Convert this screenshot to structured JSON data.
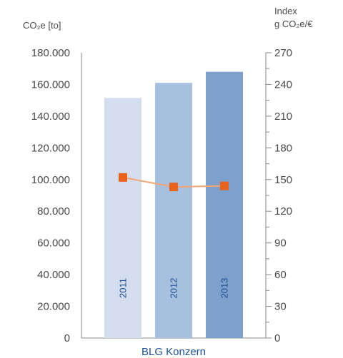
{
  "chart_data": {
    "type": "bar",
    "title": "",
    "categories": [
      "2011",
      "2012",
      "2013"
    ],
    "group_label": "BLG Konzern",
    "left_axis": {
      "label": "CO₂e [to]",
      "ticks": [
        "180.000",
        "160.000",
        "140.000",
        "120.000",
        "100.000",
        "80.000",
        "60.000",
        "40.000",
        "20.000",
        "0"
      ],
      "ylim": [
        0,
        180000
      ]
    },
    "right_axis": {
      "label_line1": "Index",
      "label_line2": "g CO₂e/€",
      "ticks": [
        "270",
        "240",
        "210",
        "180",
        "150",
        "120",
        "90",
        "60",
        "30",
        "0"
      ],
      "ylim": [
        0,
        270
      ]
    },
    "series": [
      {
        "type": "bar",
        "axis": "left",
        "values": [
          151500,
          161000,
          168000
        ],
        "colors": [
          "#d4deee",
          "#a8c0e0",
          "#7da0cd"
        ]
      },
      {
        "type": "line",
        "axis": "right",
        "values": [
          152,
          143,
          144
        ],
        "line_color": "#f4a573",
        "marker_color": "#e8631c"
      }
    ],
    "grid": false
  }
}
